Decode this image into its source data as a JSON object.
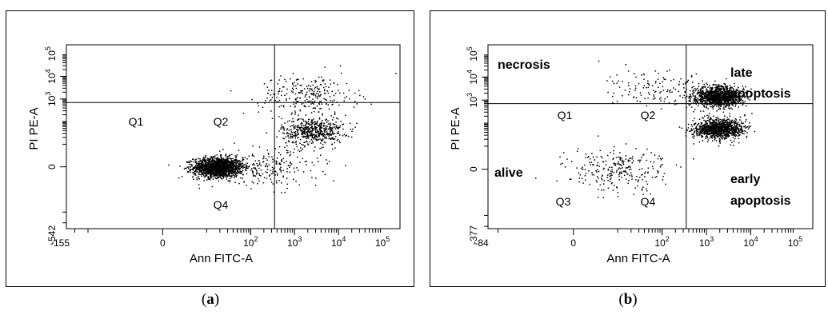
{
  "figure": {
    "caption_a": "a",
    "caption_b": "b"
  },
  "chart_data": [
    {
      "type": "scatter",
      "panel": "a",
      "xlabel": "Ann FITC-A",
      "ylabel": "PI PE-A",
      "x_scale": "biexponential",
      "y_scale": "biexponential",
      "x_range": [
        -155,
        250000
      ],
      "y_range": [
        -542,
        250000
      ],
      "x_tick_labels": [
        "-155",
        "0",
        "10^2",
        "10^3",
        "10^4",
        "10^5"
      ],
      "y_tick_labels": [
        "-542",
        "0",
        "10^3",
        "10^4",
        "10^5"
      ],
      "gate": {
        "x": 350,
        "y": 700
      },
      "quadrants": [
        "Q1",
        "Q2",
        "Q4"
      ],
      "populations": [
        {
          "x_center": 18,
          "y_center": 0,
          "spread": "dense",
          "share": 0.62
        },
        {
          "x_center": 2500,
          "y_center": 40,
          "spread": "medium",
          "share": 0.2
        },
        {
          "x_center": 2000,
          "y_center": 1500,
          "spread": "sparse",
          "share": 0.1
        },
        {
          "x_center": 300,
          "y_center": 0,
          "spread": "sparse",
          "share": 0.08
        }
      ],
      "grid": false
    },
    {
      "type": "scatter",
      "panel": "b",
      "xlabel": "Ann FITC-A",
      "ylabel": "PI PE-A",
      "x_scale": "biexponential",
      "y_scale": "biexponential",
      "x_range": [
        -84,
        250000
      ],
      "y_range": [
        -377,
        250000
      ],
      "x_tick_labels": [
        "-84",
        "0",
        "10^2",
        "10^3",
        "10^4",
        "10^5"
      ],
      "y_tick_labels": [
        "-377",
        "0",
        "10^3",
        "10^4",
        "10^5"
      ],
      "gate": {
        "x": 350,
        "y": 700
      },
      "quadrants": [
        "Q1",
        "Q2",
        "Q3",
        "Q4"
      ],
      "annotations": [
        "necrosis",
        "late",
        "apoptosis",
        "alive",
        "early",
        "apoptosis"
      ],
      "populations": [
        {
          "x_center": 1800,
          "y_center": 1500,
          "spread": "dense",
          "share": 0.45
        },
        {
          "x_center": 1800,
          "y_center": 60,
          "spread": "dense",
          "share": 0.4
        },
        {
          "x_center": 10,
          "y_center": 0,
          "spread": "sparse",
          "share": 0.1
        },
        {
          "x_center": 60,
          "y_center": 4000,
          "spread": "sparse",
          "share": 0.05
        }
      ],
      "grid": false
    }
  ]
}
